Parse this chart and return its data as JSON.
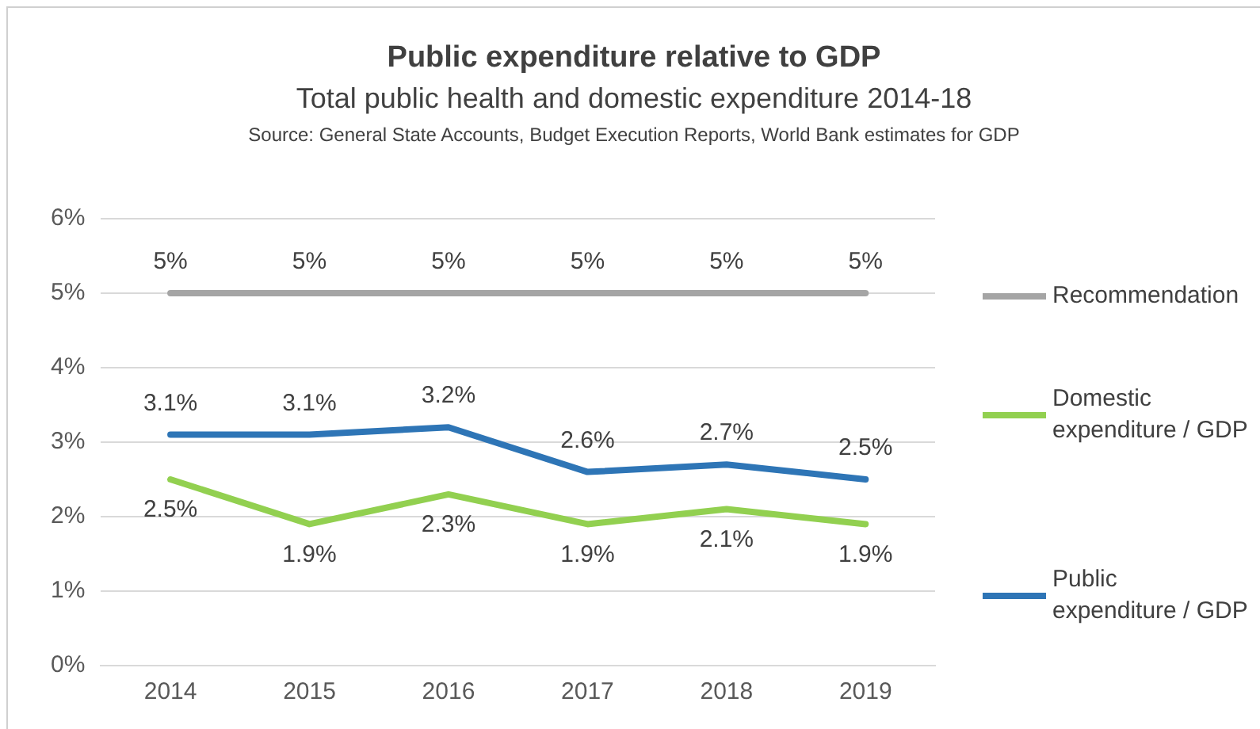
{
  "chart_data": {
    "type": "line",
    "title": "Public expenditure relative to GDP",
    "subtitle": "Total public health and domestic expenditure 2014-18",
    "annotations": [
      "Source: General State Accounts, Budget Execution Reports, World Bank estimates for GDP"
    ],
    "categories": [
      "2014",
      "2015",
      "2016",
      "2017",
      "2018",
      "2019"
    ],
    "series": [
      {
        "name": "Recommendation",
        "color": "#a5a5a5",
        "values": [
          5,
          5,
          5,
          5,
          5,
          5
        ],
        "value_labels": [
          "5%",
          "5%",
          "5%",
          "5%",
          "5%",
          "5%"
        ]
      },
      {
        "name": "Domestic expenditure / GDP",
        "color": "#92d050",
        "values": [
          2.5,
          1.9,
          2.3,
          1.9,
          2.1,
          1.9
        ],
        "value_labels": [
          "2.5%",
          "1.9%",
          "2.3%",
          "1.9%",
          "2.1%",
          "1.9%"
        ]
      },
      {
        "name": "Public expenditure / GDP",
        "color": "#2e75b6",
        "values": [
          3.1,
          3.1,
          3.2,
          2.6,
          2.7,
          2.5
        ],
        "value_labels": [
          "3.1%",
          "3.1%",
          "3.2%",
          "2.6%",
          "2.7%",
          "2.5%"
        ]
      }
    ],
    "ylim": [
      0,
      6
    ],
    "yticks": [
      {
        "value": 0,
        "label": "0%"
      },
      {
        "value": 1,
        "label": "1%"
      },
      {
        "value": 2,
        "label": "2%"
      },
      {
        "value": 3,
        "label": "3%"
      },
      {
        "value": 4,
        "label": "4%"
      },
      {
        "value": 5,
        "label": "5%"
      },
      {
        "value": 6,
        "label": "6%"
      }
    ],
    "grid": "y",
    "legend": "right",
    "marker": "none",
    "line_style": "solid"
  }
}
